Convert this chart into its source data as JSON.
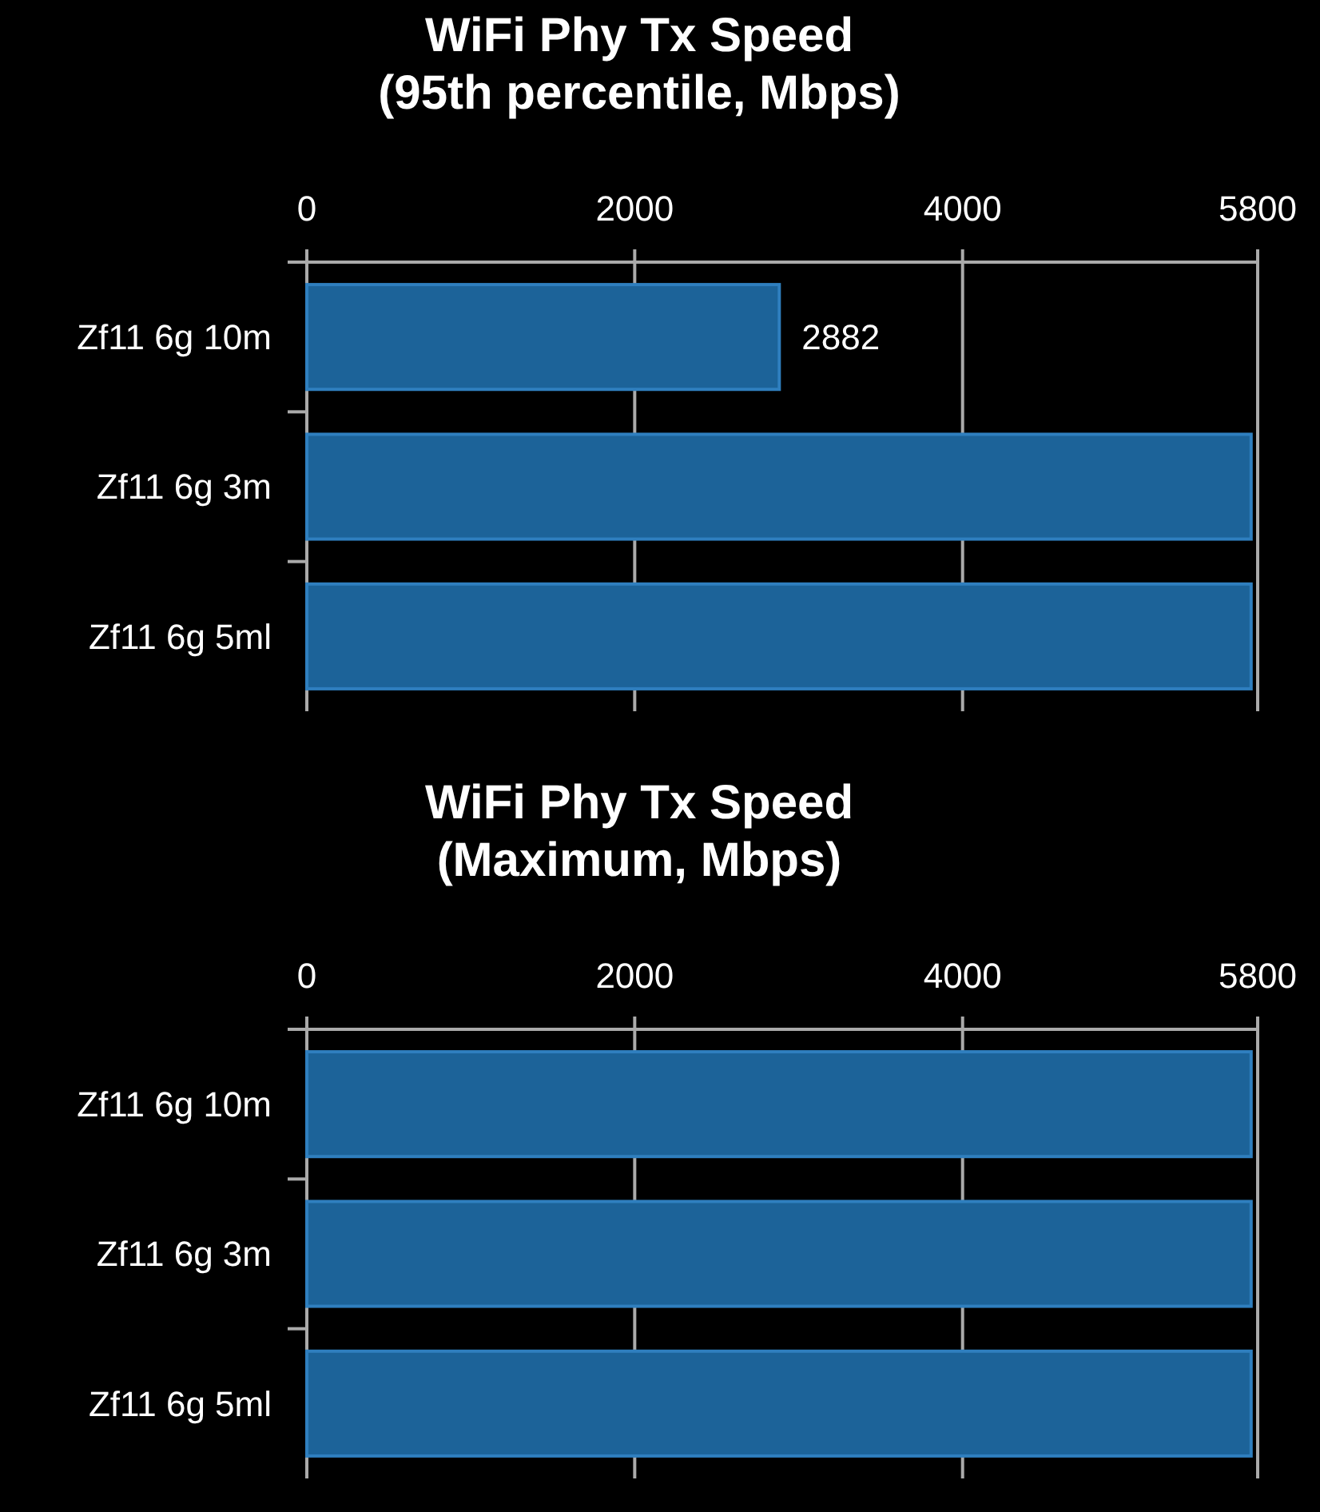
{
  "chart_data": [
    {
      "type": "bar",
      "orientation": "horizontal",
      "title": "WiFi Phy Tx Speed\n(95th percentile, Mbps)",
      "categories": [
        "Zf11 6g 10m",
        "Zf11 6g 3m",
        "Zf11 6g 5ml"
      ],
      "values": [
        2882,
        5760,
        5760
      ],
      "value_labels": [
        "2882",
        null,
        null
      ],
      "color": "#1c6399",
      "xlim": [
        0,
        5800
      ],
      "xticks": [
        0,
        2000,
        4000,
        5800
      ],
      "grid": "x"
    },
    {
      "type": "bar",
      "orientation": "horizontal",
      "title": "WiFi Phy Tx Speed\n(Maximum, Mbps)",
      "categories": [
        "Zf11 6g 10m",
        "Zf11 6g 3m",
        "Zf11 6g 5ml"
      ],
      "values": [
        5760,
        5760,
        5760
      ],
      "color": "#1c6399",
      "xlim": [
        0,
        5800
      ],
      "xticks": [
        0,
        2000,
        4000,
        5800
      ],
      "grid": "x"
    }
  ]
}
